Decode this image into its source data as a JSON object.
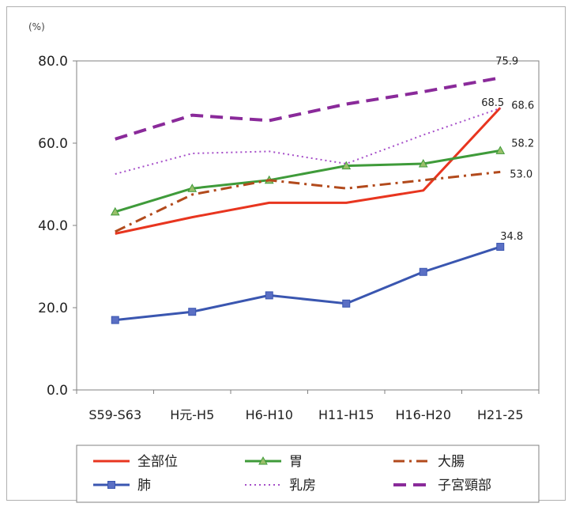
{
  "chart_data": {
    "type": "line",
    "unit_label": "(%)",
    "categories": [
      "S59-S63",
      "H元-H5",
      "H6-H10",
      "H11-H15",
      "H16-H20",
      "H21-25"
    ],
    "y_ticks": [
      "0.0",
      "20.0",
      "40.0",
      "60.0",
      "80.0"
    ],
    "ylim": [
      0,
      80
    ],
    "grid": false,
    "legend_position": "bottom",
    "series": [
      {
        "name": "全部位",
        "values": [
          38.0,
          42.0,
          45.5,
          45.5,
          48.5,
          68.6
        ],
        "color": "#e8351f",
        "style": "solid",
        "marker": "none",
        "end_label": "68.6"
      },
      {
        "name": "胃",
        "values": [
          43.3,
          49.0,
          51.0,
          54.5,
          55.0,
          58.2
        ],
        "color": "#3f9b3a",
        "style": "solid",
        "marker": "triangle",
        "end_label": "58.2"
      },
      {
        "name": "大腸",
        "values": [
          38.5,
          47.5,
          51.0,
          49.0,
          51.0,
          53.0
        ],
        "color": "#b24a1c",
        "style": "dashdot",
        "marker": "none",
        "end_label": "53.0"
      },
      {
        "name": "肺",
        "values": [
          17.0,
          19.0,
          23.0,
          21.0,
          28.7,
          34.8
        ],
        "color": "#3a56b0",
        "style": "solid",
        "marker": "square",
        "end_label": "34.8"
      },
      {
        "name": "乳房",
        "values": [
          52.5,
          57.5,
          58.0,
          55.0,
          62.0,
          68.5
        ],
        "color": "#a64fc9",
        "style": "dotted",
        "marker": "none",
        "end_label": "68.5"
      },
      {
        "name": "子宮頸部",
        "values": [
          61.0,
          66.8,
          65.5,
          69.5,
          72.5,
          75.9
        ],
        "color": "#8a2a9a",
        "style": "dashed",
        "marker": "none",
        "end_label": "75.9"
      }
    ]
  }
}
